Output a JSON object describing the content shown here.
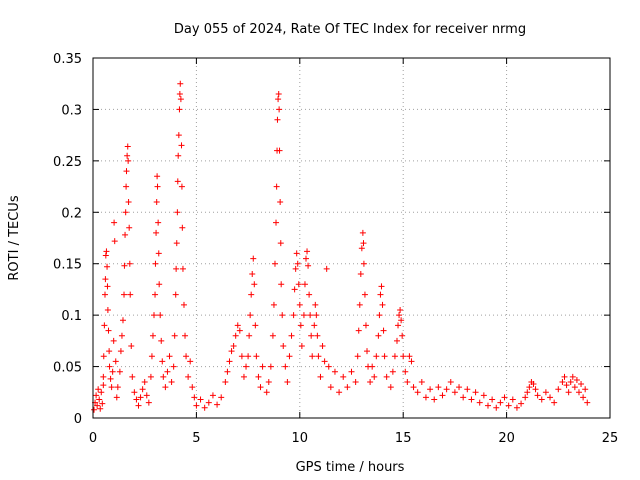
{
  "chart_data": {
    "type": "scatter",
    "title": "Day 055 of 2024, Rate Of TEC Index for receiver nrmg",
    "xlabel": "GPS time / hours",
    "ylabel": "ROTI / TECUs",
    "xlim": [
      0,
      25
    ],
    "ylim": [
      0,
      0.35
    ],
    "x_ticks": [
      {
        "value": 0,
        "label": "0"
      },
      {
        "value": 5,
        "label": "5"
      },
      {
        "value": 10,
        "label": "10"
      },
      {
        "value": 15,
        "label": "15"
      },
      {
        "value": 20,
        "label": "20"
      },
      {
        "value": 25,
        "label": "25"
      }
    ],
    "y_ticks": [
      {
        "value": 0,
        "label": "0"
      },
      {
        "value": 0.05,
        "label": "0.05"
      },
      {
        "value": 0.1,
        "label": "0.1"
      },
      {
        "value": 0.15,
        "label": "0.15"
      },
      {
        "value": 0.2,
        "label": "0.2"
      },
      {
        "value": 0.25,
        "label": "0.25"
      },
      {
        "value": 0.3,
        "label": "0.3"
      },
      {
        "value": 0.35,
        "label": "0.35"
      }
    ],
    "grid": true,
    "marker": "+",
    "color": "#ff0000",
    "series": [
      {
        "name": "ROTI",
        "points": [
          [
            0.05,
            0.008
          ],
          [
            0.1,
            0.015
          ],
          [
            0.15,
            0.022
          ],
          [
            0.2,
            0.012
          ],
          [
            0.25,
            0.028
          ],
          [
            0.3,
            0.018
          ],
          [
            0.35,
            0.009
          ],
          [
            0.4,
            0.025
          ],
          [
            0.45,
            0.014
          ],
          [
            0.5,
            0.032
          ],
          [
            0.5,
            0.04
          ],
          [
            0.52,
            0.06
          ],
          [
            0.55,
            0.09
          ],
          [
            0.58,
            0.12
          ],
          [
            0.6,
            0.135
          ],
          [
            0.62,
            0.158
          ],
          [
            0.65,
            0.162
          ],
          [
            0.68,
            0.147
          ],
          [
            0.7,
            0.128
          ],
          [
            0.72,
            0.105
          ],
          [
            0.75,
            0.085
          ],
          [
            0.78,
            0.065
          ],
          [
            0.8,
            0.05
          ],
          [
            0.85,
            0.038
          ],
          [
            0.9,
            0.03
          ],
          [
            0.95,
            0.045
          ],
          [
            1.0,
            0.075
          ],
          [
            1.02,
            0.19
          ],
          [
            1.05,
            0.172
          ],
          [
            1.1,
            0.055
          ],
          [
            1.15,
            0.02
          ],
          [
            1.2,
            0.03
          ],
          [
            1.3,
            0.045
          ],
          [
            1.35,
            0.065
          ],
          [
            1.4,
            0.08
          ],
          [
            1.45,
            0.095
          ],
          [
            1.5,
            0.12
          ],
          [
            1.52,
            0.148
          ],
          [
            1.55,
            0.178
          ],
          [
            1.58,
            0.2
          ],
          [
            1.6,
            0.225
          ],
          [
            1.62,
            0.24
          ],
          [
            1.65,
            0.255
          ],
          [
            1.68,
            0.264
          ],
          [
            1.7,
            0.25
          ],
          [
            1.72,
            0.21
          ],
          [
            1.75,
            0.185
          ],
          [
            1.78,
            0.15
          ],
          [
            1.8,
            0.12
          ],
          [
            1.85,
            0.07
          ],
          [
            1.9,
            0.04
          ],
          [
            2.0,
            0.025
          ],
          [
            2.1,
            0.018
          ],
          [
            2.2,
            0.012
          ],
          [
            2.3,
            0.02
          ],
          [
            2.4,
            0.028
          ],
          [
            2.5,
            0.035
          ],
          [
            2.6,
            0.022
          ],
          [
            2.7,
            0.015
          ],
          [
            2.8,
            0.04
          ],
          [
            2.85,
            0.06
          ],
          [
            2.9,
            0.08
          ],
          [
            2.95,
            0.1
          ],
          [
            3.0,
            0.12
          ],
          [
            3.02,
            0.15
          ],
          [
            3.05,
            0.18
          ],
          [
            3.08,
            0.21
          ],
          [
            3.1,
            0.235
          ],
          [
            3.12,
            0.225
          ],
          [
            3.15,
            0.19
          ],
          [
            3.18,
            0.16
          ],
          [
            3.2,
            0.13
          ],
          [
            3.25,
            0.1
          ],
          [
            3.3,
            0.075
          ],
          [
            3.35,
            0.055
          ],
          [
            3.4,
            0.04
          ],
          [
            3.5,
            0.03
          ],
          [
            3.6,
            0.045
          ],
          [
            3.7,
            0.06
          ],
          [
            3.8,
            0.035
          ],
          [
            3.9,
            0.05
          ],
          [
            3.95,
            0.08
          ],
          [
            4.0,
            0.12
          ],
          [
            4.02,
            0.145
          ],
          [
            4.05,
            0.17
          ],
          [
            4.08,
            0.2
          ],
          [
            4.1,
            0.23
          ],
          [
            4.12,
            0.255
          ],
          [
            4.15,
            0.275
          ],
          [
            4.18,
            0.3
          ],
          [
            4.2,
            0.315
          ],
          [
            4.22,
            0.325
          ],
          [
            4.25,
            0.31
          ],
          [
            4.28,
            0.265
          ],
          [
            4.3,
            0.225
          ],
          [
            4.32,
            0.185
          ],
          [
            4.35,
            0.145
          ],
          [
            4.4,
            0.11
          ],
          [
            4.45,
            0.08
          ],
          [
            4.5,
            0.06
          ],
          [
            4.6,
            0.04
          ],
          [
            4.7,
            0.055
          ],
          [
            4.8,
            0.03
          ],
          [
            4.9,
            0.02
          ],
          [
            5.0,
            0.012
          ],
          [
            5.2,
            0.018
          ],
          [
            5.4,
            0.01
          ],
          [
            5.6,
            0.015
          ],
          [
            5.8,
            0.022
          ],
          [
            6.0,
            0.013
          ],
          [
            6.2,
            0.02
          ],
          [
            6.4,
            0.035
          ],
          [
            6.5,
            0.045
          ],
          [
            6.6,
            0.055
          ],
          [
            6.7,
            0.065
          ],
          [
            6.8,
            0.07
          ],
          [
            6.9,
            0.08
          ],
          [
            7.0,
            0.09
          ],
          [
            7.1,
            0.085
          ],
          [
            7.2,
            0.06
          ],
          [
            7.3,
            0.04
          ],
          [
            7.4,
            0.05
          ],
          [
            7.5,
            0.06
          ],
          [
            7.55,
            0.08
          ],
          [
            7.6,
            0.1
          ],
          [
            7.65,
            0.12
          ],
          [
            7.7,
            0.14
          ],
          [
            7.75,
            0.155
          ],
          [
            7.8,
            0.13
          ],
          [
            7.85,
            0.09
          ],
          [
            7.9,
            0.06
          ],
          [
            8.0,
            0.04
          ],
          [
            8.1,
            0.03
          ],
          [
            8.2,
            0.05
          ],
          [
            8.4,
            0.025
          ],
          [
            8.5,
            0.035
          ],
          [
            8.6,
            0.05
          ],
          [
            8.7,
            0.08
          ],
          [
            8.75,
            0.11
          ],
          [
            8.8,
            0.15
          ],
          [
            8.85,
            0.19
          ],
          [
            8.88,
            0.225
          ],
          [
            8.9,
            0.26
          ],
          [
            8.92,
            0.29
          ],
          [
            8.95,
            0.31
          ],
          [
            8.98,
            0.315
          ],
          [
            9.0,
            0.3
          ],
          [
            9.02,
            0.26
          ],
          [
            9.05,
            0.21
          ],
          [
            9.08,
            0.17
          ],
          [
            9.1,
            0.13
          ],
          [
            9.15,
            0.1
          ],
          [
            9.2,
            0.07
          ],
          [
            9.3,
            0.05
          ],
          [
            9.4,
            0.035
          ],
          [
            9.5,
            0.06
          ],
          [
            9.6,
            0.08
          ],
          [
            9.7,
            0.1
          ],
          [
            9.75,
            0.125
          ],
          [
            9.8,
            0.145
          ],
          [
            9.85,
            0.16
          ],
          [
            9.9,
            0.15
          ],
          [
            9.95,
            0.13
          ],
          [
            10.0,
            0.11
          ],
          [
            10.05,
            0.09
          ],
          [
            10.1,
            0.07
          ],
          [
            10.2,
            0.1
          ],
          [
            10.25,
            0.13
          ],
          [
            10.3,
            0.155
          ],
          [
            10.35,
            0.162
          ],
          [
            10.4,
            0.148
          ],
          [
            10.45,
            0.12
          ],
          [
            10.5,
            0.1
          ],
          [
            10.55,
            0.08
          ],
          [
            10.6,
            0.06
          ],
          [
            10.7,
            0.09
          ],
          [
            10.75,
            0.11
          ],
          [
            10.8,
            0.1
          ],
          [
            10.85,
            0.08
          ],
          [
            10.9,
            0.06
          ],
          [
            11.0,
            0.04
          ],
          [
            11.1,
            0.07
          ],
          [
            11.2,
            0.055
          ],
          [
            11.3,
            0.145
          ],
          [
            11.4,
            0.05
          ],
          [
            11.5,
            0.03
          ],
          [
            11.7,
            0.045
          ],
          [
            11.9,
            0.025
          ],
          [
            12.1,
            0.04
          ],
          [
            12.3,
            0.03
          ],
          [
            12.5,
            0.045
          ],
          [
            12.7,
            0.035
          ],
          [
            12.8,
            0.06
          ],
          [
            12.85,
            0.085
          ],
          [
            12.9,
            0.11
          ],
          [
            12.95,
            0.14
          ],
          [
            13.0,
            0.165
          ],
          [
            13.05,
            0.18
          ],
          [
            13.08,
            0.17
          ],
          [
            13.1,
            0.15
          ],
          [
            13.15,
            0.12
          ],
          [
            13.2,
            0.09
          ],
          [
            13.25,
            0.065
          ],
          [
            13.3,
            0.05
          ],
          [
            13.4,
            0.035
          ],
          [
            13.5,
            0.05
          ],
          [
            13.6,
            0.04
          ],
          [
            13.7,
            0.06
          ],
          [
            13.8,
            0.08
          ],
          [
            13.85,
            0.1
          ],
          [
            13.9,
            0.12
          ],
          [
            13.95,
            0.128
          ],
          [
            14.0,
            0.11
          ],
          [
            14.05,
            0.085
          ],
          [
            14.1,
            0.06
          ],
          [
            14.2,
            0.04
          ],
          [
            14.4,
            0.03
          ],
          [
            14.5,
            0.045
          ],
          [
            14.6,
            0.06
          ],
          [
            14.7,
            0.075
          ],
          [
            14.75,
            0.09
          ],
          [
            14.8,
            0.1
          ],
          [
            14.85,
            0.105
          ],
          [
            14.9,
            0.095
          ],
          [
            14.95,
            0.08
          ],
          [
            15.0,
            0.06
          ],
          [
            15.1,
            0.045
          ],
          [
            15.2,
            0.035
          ],
          [
            15.3,
            0.06
          ],
          [
            15.4,
            0.055
          ],
          [
            15.5,
            0.03
          ],
          [
            15.7,
            0.025
          ],
          [
            15.9,
            0.035
          ],
          [
            16.1,
            0.02
          ],
          [
            16.3,
            0.028
          ],
          [
            16.5,
            0.018
          ],
          [
            16.7,
            0.03
          ],
          [
            16.9,
            0.022
          ],
          [
            17.1,
            0.028
          ],
          [
            17.3,
            0.035
          ],
          [
            17.5,
            0.025
          ],
          [
            17.7,
            0.03
          ],
          [
            17.9,
            0.02
          ],
          [
            18.1,
            0.028
          ],
          [
            18.3,
            0.018
          ],
          [
            18.5,
            0.025
          ],
          [
            18.7,
            0.015
          ],
          [
            18.9,
            0.022
          ],
          [
            19.1,
            0.012
          ],
          [
            19.3,
            0.018
          ],
          [
            19.5,
            0.01
          ],
          [
            19.7,
            0.015
          ],
          [
            19.9,
            0.02
          ],
          [
            20.1,
            0.012
          ],
          [
            20.3,
            0.018
          ],
          [
            20.5,
            0.01
          ],
          [
            20.7,
            0.014
          ],
          [
            20.9,
            0.02
          ],
          [
            21.0,
            0.025
          ],
          [
            21.1,
            0.03
          ],
          [
            21.2,
            0.035
          ],
          [
            21.3,
            0.033
          ],
          [
            21.4,
            0.028
          ],
          [
            21.5,
            0.022
          ],
          [
            21.7,
            0.018
          ],
          [
            21.9,
            0.025
          ],
          [
            22.1,
            0.02
          ],
          [
            22.3,
            0.015
          ],
          [
            22.5,
            0.028
          ],
          [
            22.7,
            0.035
          ],
          [
            22.8,
            0.04
          ],
          [
            22.9,
            0.032
          ],
          [
            23.0,
            0.025
          ],
          [
            23.1,
            0.035
          ],
          [
            23.2,
            0.04
          ],
          [
            23.3,
            0.03
          ],
          [
            23.4,
            0.037
          ],
          [
            23.5,
            0.025
          ],
          [
            23.6,
            0.033
          ],
          [
            23.7,
            0.02
          ],
          [
            23.8,
            0.028
          ],
          [
            23.9,
            0.015
          ]
        ]
      }
    ]
  }
}
